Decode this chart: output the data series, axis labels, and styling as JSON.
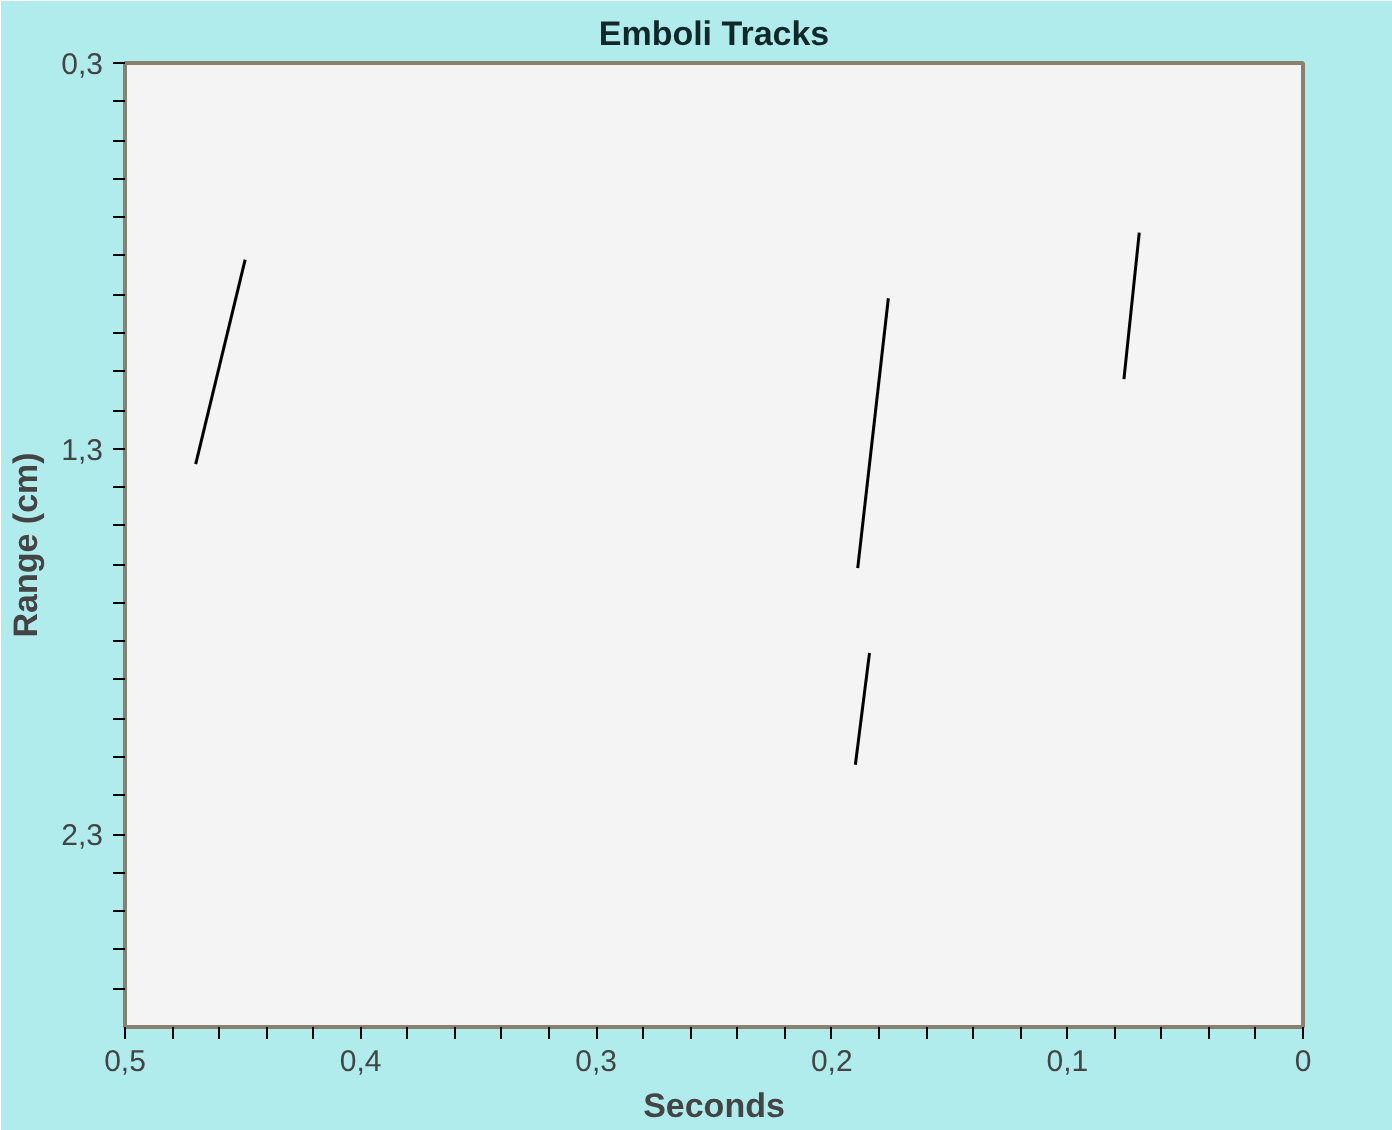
{
  "chart_data": {
    "type": "line",
    "title": "Emboli Tracks",
    "xlabel": "Seconds",
    "ylabel": "Range (cm)",
    "xlim": [
      0.5,
      0
    ],
    "ylim": [
      2.8,
      0.3
    ],
    "xticks": [
      {
        "value": 0.5,
        "label": "0,5"
      },
      {
        "value": 0.48,
        "label": null
      },
      {
        "value": 0.46,
        "label": null
      },
      {
        "value": 0.44,
        "label": null
      },
      {
        "value": 0.42,
        "label": null
      },
      {
        "value": 0.4,
        "label": "0,4"
      },
      {
        "value": 0.38,
        "label": null
      },
      {
        "value": 0.36,
        "label": null
      },
      {
        "value": 0.34,
        "label": null
      },
      {
        "value": 0.32,
        "label": null
      },
      {
        "value": 0.3,
        "label": "0,3"
      },
      {
        "value": 0.28,
        "label": null
      },
      {
        "value": 0.26,
        "label": null
      },
      {
        "value": 0.24,
        "label": null
      },
      {
        "value": 0.22,
        "label": null
      },
      {
        "value": 0.2,
        "label": "0,2"
      },
      {
        "value": 0.18,
        "label": null
      },
      {
        "value": 0.16,
        "label": null
      },
      {
        "value": 0.14,
        "label": null
      },
      {
        "value": 0.12,
        "label": null
      },
      {
        "value": 0.1,
        "label": "0,1"
      },
      {
        "value": 0.08,
        "label": null
      },
      {
        "value": 0.06,
        "label": null
      },
      {
        "value": 0.04,
        "label": null
      },
      {
        "value": 0.02,
        "label": null
      },
      {
        "value": 0,
        "label": "0"
      }
    ],
    "yticks": [
      {
        "value": 0.3,
        "label": "0,3"
      },
      {
        "value": 0.4,
        "label": null
      },
      {
        "value": 0.5,
        "label": null
      },
      {
        "value": 0.6,
        "label": null
      },
      {
        "value": 0.7,
        "label": null
      },
      {
        "value": 0.8,
        "label": null
      },
      {
        "value": 0.9,
        "label": null
      },
      {
        "value": 1.0,
        "label": null
      },
      {
        "value": 1.1,
        "label": null
      },
      {
        "value": 1.2,
        "label": null
      },
      {
        "value": 1.3,
        "label": "1,3"
      },
      {
        "value": 1.4,
        "label": null
      },
      {
        "value": 1.5,
        "label": null
      },
      {
        "value": 1.6,
        "label": null
      },
      {
        "value": 1.7,
        "label": null
      },
      {
        "value": 1.8,
        "label": null
      },
      {
        "value": 1.9,
        "label": null
      },
      {
        "value": 2.0,
        "label": null
      },
      {
        "value": 2.1,
        "label": null
      },
      {
        "value": 2.2,
        "label": null
      },
      {
        "value": 2.3,
        "label": "2,3"
      },
      {
        "value": 2.4,
        "label": null
      },
      {
        "value": 2.5,
        "label": null
      },
      {
        "value": 2.6,
        "label": null
      },
      {
        "value": 2.7,
        "label": null
      }
    ],
    "grid": false,
    "series": [
      {
        "color": "#000000",
        "x": [
          0.47,
          0.449
        ],
        "values": [
          1.34,
          0.81
        ]
      },
      {
        "color": "#000000",
        "x": [
          0.189,
          0.176
        ],
        "values": [
          1.61,
          0.91
        ]
      },
      {
        "color": "#000000",
        "x": [
          0.19,
          0.184
        ],
        "values": [
          2.12,
          1.83
        ]
      },
      {
        "color": "#000000",
        "x": [
          0.076,
          0.0695
        ],
        "values": [
          1.12,
          0.74
        ]
      }
    ]
  }
}
